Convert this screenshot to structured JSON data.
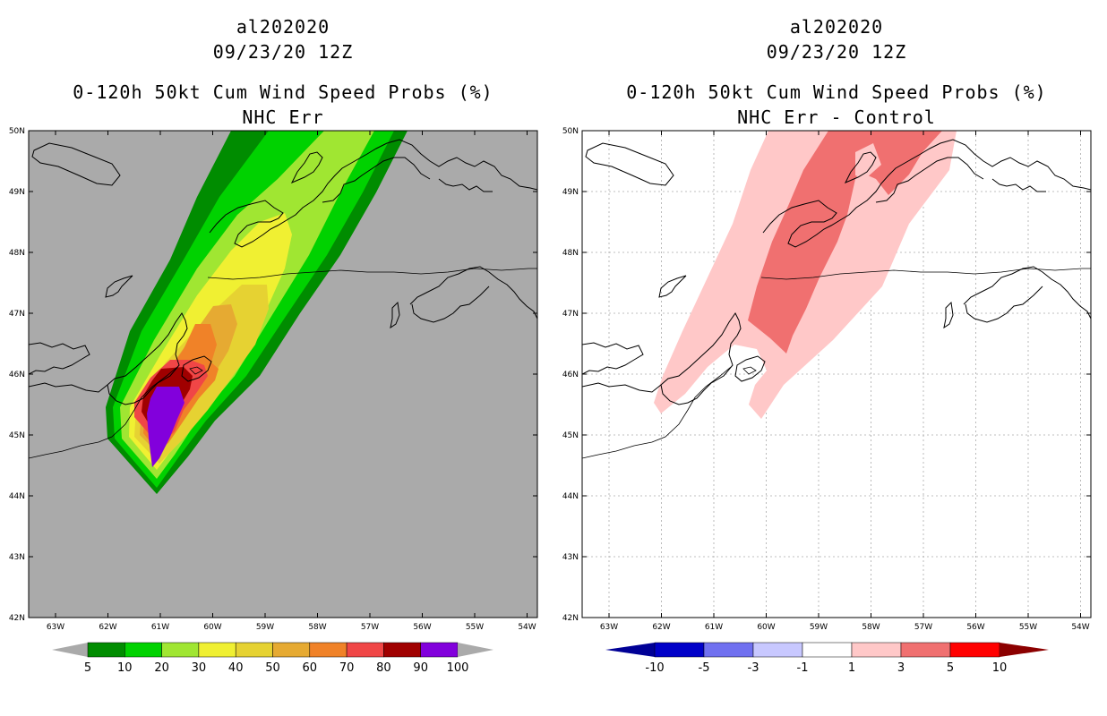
{
  "left_panel": {
    "storm_id": "al202020",
    "datetime": "09/23/20 12Z",
    "product": "0-120h 50kt Cum Wind Speed Probs (%)",
    "subtitle": "NHC Err",
    "colorbar": {
      "labels": [
        "5",
        "10",
        "20",
        "30",
        "40",
        "50",
        "60",
        "70",
        "80",
        "90",
        "100"
      ],
      "colors": [
        "#008c00",
        "#00d200",
        "#a0e632",
        "#f0f032",
        "#e6d232",
        "#e6aa32",
        "#f08228",
        "#f04646",
        "#a00000",
        "#8200dc"
      ],
      "under_color": "#aaaaaa",
      "over_color": "#aaaaaa"
    },
    "background_color": "#aaaaaa"
  },
  "right_panel": {
    "storm_id": "al202020",
    "datetime": "09/23/20 12Z",
    "product": "0-120h 50kt Cum Wind Speed Probs (%)",
    "subtitle": "NHC Err - Control",
    "colorbar": {
      "labels": [
        "-10",
        "-5",
        "-3",
        "-1",
        "1",
        "3",
        "5",
        "10"
      ],
      "colors": [
        "#0000c8",
        "#7070f0",
        "#c8c8ff",
        "#ffffff",
        "#ffc8c8",
        "#f07070",
        "#ff0000"
      ],
      "under_color": "#000096",
      "over_color": "#8c0000"
    },
    "background_color": "#ffffff"
  },
  "map": {
    "lat_labels": [
      "50N",
      "49N",
      "48N",
      "47N",
      "46N",
      "45N",
      "44N",
      "43N",
      "42N"
    ],
    "lon_labels": [
      "63W",
      "62W",
      "61W",
      "60W",
      "59W",
      "58W",
      "57W",
      "56W",
      "55W",
      "54W"
    ]
  }
}
